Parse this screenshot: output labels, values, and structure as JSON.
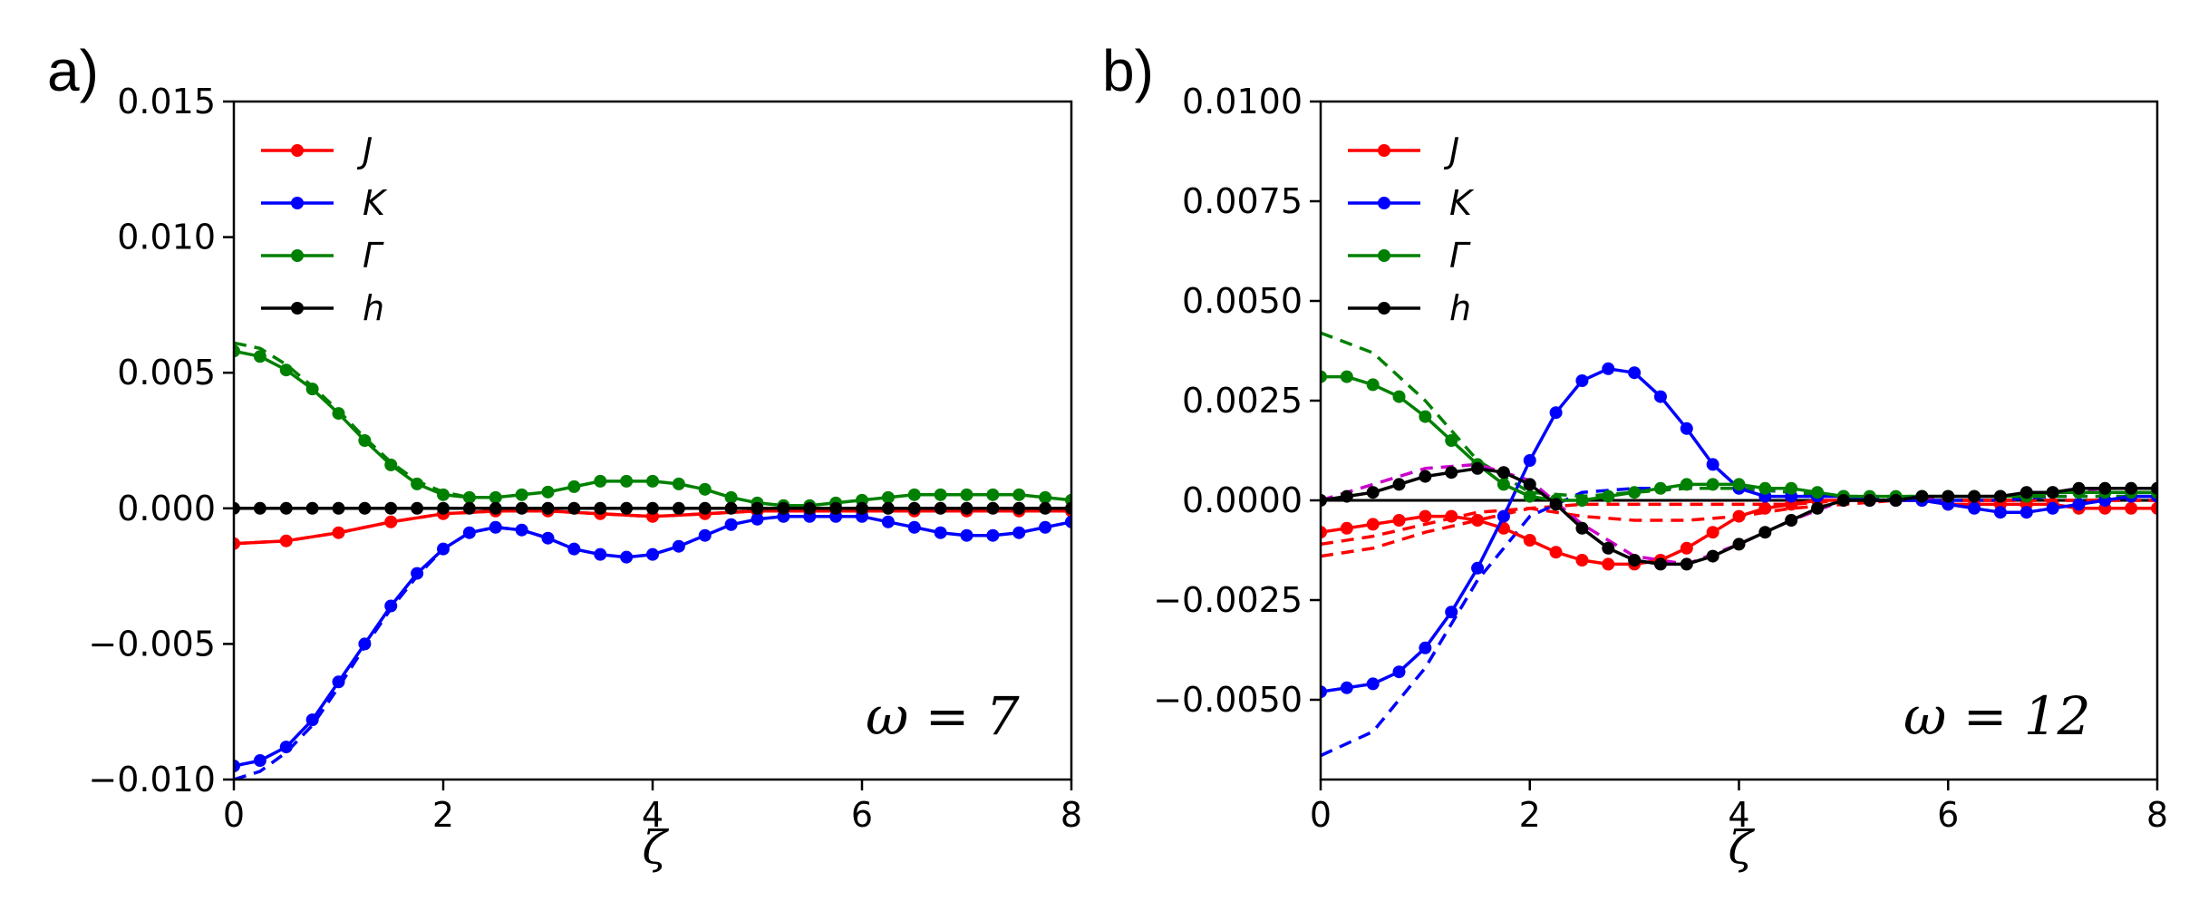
{
  "chart_data": [
    {
      "type": "line",
      "panel_label": "a)",
      "xlabel": "ζ",
      "ylabel": "",
      "xlim": [
        0,
        8
      ],
      "ylim": [
        -0.01,
        0.015
      ],
      "xticks": [
        0,
        2,
        4,
        6,
        8
      ],
      "xtick_labels": [
        "0",
        "2",
        "4",
        "6",
        "8"
      ],
      "yticks": [
        -0.01,
        -0.005,
        0.0,
        0.005,
        0.01,
        0.015
      ],
      "ytick_labels": [
        "−0.010",
        "−0.005",
        "0.000",
        "0.005",
        "0.010",
        "0.015"
      ],
      "annotation": "ω = 7",
      "legend_position": "upper-left",
      "legend": [
        "J",
        "K",
        "Γ",
        "h"
      ],
      "colors": {
        "J": "#ff0000",
        "K": "#0000ff",
        "Γ": "#008000",
        "h": "#000000"
      },
      "series": [
        {
          "name": "J",
          "color": "#ff0000",
          "style": "solid-dots",
          "x": [
            0,
            0.5,
            1,
            1.5,
            2,
            2.5,
            3,
            3.5,
            4,
            4.5,
            5,
            5.5,
            6,
            6.5,
            7,
            7.5,
            8
          ],
          "y": [
            -0.0013,
            -0.0012,
            -0.0009,
            -0.0005,
            -0.0002,
            -0.0001,
            -0.0001,
            -0.0002,
            -0.0003,
            -0.0002,
            -0.0001,
            -0.0001,
            -0.0001,
            -0.0001,
            -0.0001,
            -0.0001,
            -0.0001
          ]
        },
        {
          "name": "J dashed",
          "color": "#ff0000",
          "style": "dashed",
          "x": [
            0,
            0.5,
            1,
            1.5,
            2,
            2.5,
            3,
            3.5,
            4,
            4.5,
            5,
            5.5,
            6,
            6.5,
            7,
            7.5,
            8
          ],
          "y": [
            -0.0013,
            -0.0012,
            -0.0009,
            -0.0005,
            -0.0002,
            -0.0001,
            -0.0001,
            -0.0002,
            -0.0003,
            -0.0002,
            -0.0001,
            -0.0001,
            -0.0001,
            -0.0001,
            -0.0001,
            -0.0001,
            -0.0001
          ]
        },
        {
          "name": "K",
          "color": "#0000ff",
          "style": "solid-dots",
          "x": [
            0,
            0.25,
            0.5,
            0.75,
            1,
            1.25,
            1.5,
            1.75,
            2,
            2.25,
            2.5,
            2.75,
            3,
            3.25,
            3.5,
            3.75,
            4,
            4.25,
            4.5,
            4.75,
            5,
            5.25,
            5.5,
            5.75,
            6,
            6.25,
            6.5,
            6.75,
            7,
            7.25,
            7.5,
            7.75,
            8
          ],
          "y": [
            -0.0095,
            -0.0093,
            -0.0088,
            -0.0078,
            -0.0064,
            -0.005,
            -0.0036,
            -0.0024,
            -0.0015,
            -0.0009,
            -0.0007,
            -0.0008,
            -0.0011,
            -0.0015,
            -0.0017,
            -0.0018,
            -0.0017,
            -0.0014,
            -0.001,
            -0.0006,
            -0.0004,
            -0.0003,
            -0.0003,
            -0.0003,
            -0.0003,
            -0.0005,
            -0.0007,
            -0.0009,
            -0.001,
            -0.001,
            -0.0009,
            -0.0007,
            -0.0005
          ]
        },
        {
          "name": "K dashed",
          "color": "#0000ff",
          "style": "dashed",
          "x": [
            0,
            0.25,
            0.5,
            0.75,
            1,
            1.25,
            1.5,
            1.75,
            2,
            2.25,
            2.5,
            2.75,
            3
          ],
          "y": [
            -0.01,
            -0.0097,
            -0.009,
            -0.008,
            -0.0066,
            -0.0051,
            -0.0037,
            -0.0025,
            -0.0015,
            -0.0009,
            -0.0007,
            -0.0008,
            -0.0011
          ]
        },
        {
          "name": "Γ",
          "color": "#008000",
          "style": "solid-dots",
          "x": [
            0,
            0.25,
            0.5,
            0.75,
            1,
            1.25,
            1.5,
            1.75,
            2,
            2.25,
            2.5,
            2.75,
            3,
            3.25,
            3.5,
            3.75,
            4,
            4.25,
            4.5,
            4.75,
            5,
            5.25,
            5.5,
            5.75,
            6,
            6.25,
            6.5,
            6.75,
            7,
            7.25,
            7.5,
            7.75,
            8
          ],
          "y": [
            0.0058,
            0.0056,
            0.0051,
            0.0044,
            0.0035,
            0.0025,
            0.0016,
            0.0009,
            0.0005,
            0.0004,
            0.0004,
            0.0005,
            0.0006,
            0.0008,
            0.001,
            0.001,
            0.001,
            0.0009,
            0.0007,
            0.0004,
            0.0002,
            0.0001,
            0.0001,
            0.0002,
            0.0003,
            0.0004,
            0.0005,
            0.0005,
            0.0005,
            0.0005,
            0.0005,
            0.0004,
            0.0003
          ]
        },
        {
          "name": "Γ dashed",
          "color": "#008000",
          "style": "dashed",
          "x": [
            0,
            0.25,
            0.5,
            0.75,
            1,
            1.25,
            1.5,
            1.75,
            2,
            2.25,
            2.5
          ],
          "y": [
            0.0061,
            0.0059,
            0.0053,
            0.0045,
            0.0036,
            0.0026,
            0.0017,
            0.001,
            0.0006,
            0.0004,
            0.0004
          ]
        },
        {
          "name": "h",
          "color": "#000000",
          "style": "solid-dots",
          "x": [
            0,
            0.25,
            0.5,
            0.75,
            1,
            1.25,
            1.5,
            1.75,
            2,
            2.25,
            2.5,
            2.75,
            3,
            3.25,
            3.5,
            3.75,
            4,
            4.25,
            4.5,
            4.75,
            5,
            5.25,
            5.5,
            5.75,
            6,
            6.25,
            6.5,
            6.75,
            7,
            7.25,
            7.5,
            7.75,
            8
          ],
          "y": [
            0.0,
            0.0,
            0.0,
            0.0,
            0.0,
            0.0,
            0.0,
            0.0,
            0.0,
            0.0,
            0.0,
            0.0,
            0.0,
            0.0,
            0.0,
            0.0,
            0.0,
            0.0,
            0.0,
            0.0,
            0.0,
            0.0,
            0.0,
            0.0,
            0.0,
            0.0,
            0.0,
            0.0,
            0.0,
            0.0,
            0.0,
            0.0,
            0.0
          ]
        }
      ]
    },
    {
      "type": "line",
      "panel_label": "b)",
      "xlabel": "ζ",
      "ylabel": "",
      "xlim": [
        0,
        8
      ],
      "ylim": [
        -0.007,
        0.01
      ],
      "xticks": [
        0,
        2,
        4,
        6,
        8
      ],
      "xtick_labels": [
        "0",
        "2",
        "4",
        "6",
        "8"
      ],
      "yticks": [
        -0.005,
        -0.0025,
        0.0,
        0.0025,
        0.005,
        0.0075,
        0.01
      ],
      "ytick_labels": [
        "−0.0050",
        "−0.0025",
        "0.0000",
        "0.0025",
        "0.0050",
        "0.0075",
        "0.0100"
      ],
      "annotation": "ω = 12",
      "legend_position": "upper-left",
      "legend": [
        "J",
        "K",
        "Γ",
        "h"
      ],
      "colors": {
        "J": "#ff0000",
        "K": "#0000ff",
        "Γ": "#008000",
        "h": "#000000",
        "extra": "#cc00cc"
      },
      "series": [
        {
          "name": "J",
          "color": "#ff0000",
          "style": "solid-dots",
          "x": [
            0,
            0.25,
            0.5,
            0.75,
            1,
            1.25,
            1.5,
            1.75,
            2,
            2.25,
            2.5,
            2.75,
            3,
            3.25,
            3.5,
            3.75,
            4,
            4.25,
            4.5,
            4.75,
            5,
            5.25,
            5.5,
            5.75,
            6,
            6.25,
            6.5,
            6.75,
            7,
            7.25,
            7.5,
            7.75,
            8
          ],
          "y": [
            -0.0008,
            -0.0007,
            -0.0006,
            -0.0005,
            -0.0004,
            -0.0004,
            -0.0005,
            -0.0007,
            -0.001,
            -0.0013,
            -0.0015,
            -0.0016,
            -0.0016,
            -0.0015,
            -0.0012,
            -0.0008,
            -0.0004,
            -0.0002,
            -0.0001,
            0.0,
            0.0,
            0.0,
            0.0,
            0.0,
            -0.0001,
            -0.0001,
            -0.0001,
            -0.0001,
            -0.0001,
            -0.0002,
            -0.0002,
            -0.0002,
            -0.0002
          ]
        },
        {
          "name": "J dashed 1",
          "color": "#ff0000",
          "style": "dashed",
          "x": [
            0,
            0.5,
            1,
            1.5,
            2,
            2.5,
            3,
            3.5,
            4,
            4.5,
            5,
            5.5,
            6,
            6.5,
            7,
            7.5,
            8
          ],
          "y": [
            -0.0014,
            -0.0012,
            -0.0008,
            -0.0005,
            -0.0002,
            -0.0001,
            -0.0001,
            -0.0001,
            -0.0001,
            -0.0001,
            0.0,
            0.0,
            0.0,
            0.0,
            0.0,
            0.0,
            0.0
          ]
        },
        {
          "name": "J dashed 2",
          "color": "#ff0000",
          "style": "dashed",
          "x": [
            0,
            0.5,
            1,
            1.5,
            2,
            2.5,
            3,
            3.5,
            4,
            4.5,
            5,
            5.5,
            6,
            6.5,
            7,
            7.5,
            8
          ],
          "y": [
            -0.0011,
            -0.0009,
            -0.0006,
            -0.0003,
            -0.0002,
            -0.0004,
            -0.0005,
            -0.0005,
            -0.0004,
            -0.0002,
            -0.0001,
            0.0,
            0.0,
            0.0,
            0.0,
            0.0,
            0.0
          ]
        },
        {
          "name": "K",
          "color": "#0000ff",
          "style": "solid-dots",
          "x": [
            0,
            0.25,
            0.5,
            0.75,
            1,
            1.25,
            1.5,
            1.75,
            2,
            2.25,
            2.5,
            2.75,
            3,
            3.25,
            3.5,
            3.75,
            4,
            4.25,
            4.5,
            4.75,
            5,
            5.25,
            5.5,
            5.75,
            6,
            6.25,
            6.5,
            6.75,
            7,
            7.25,
            7.5,
            7.75,
            8
          ],
          "y": [
            -0.0048,
            -0.0047,
            -0.0046,
            -0.0043,
            -0.0037,
            -0.0028,
            -0.0017,
            -0.0004,
            0.001,
            0.0022,
            0.003,
            0.0033,
            0.0032,
            0.0026,
            0.0018,
            0.0009,
            0.0003,
            0.0001,
            0.0001,
            0.0001,
            0.0001,
            0.0,
            0.0,
            0.0,
            -0.0001,
            -0.0002,
            -0.0003,
            -0.0003,
            -0.0002,
            -0.0001,
            0.0,
            0.0001,
            0.0001
          ]
        },
        {
          "name": "K dashed",
          "color": "#0000ff",
          "style": "dashed",
          "x": [
            0,
            0.5,
            1,
            1.5,
            2,
            2.5,
            3,
            3.5,
            4,
            4.5,
            5,
            5.5,
            6,
            6.5,
            7,
            7.5,
            8
          ],
          "y": [
            -0.0064,
            -0.0058,
            -0.0042,
            -0.002,
            -0.0004,
            0.0002,
            0.0003,
            0.0003,
            0.0003,
            0.0002,
            0.0001,
            0.0,
            0.0,
            0.0,
            0.0001,
            0.0001,
            0.0001
          ]
        },
        {
          "name": "Γ",
          "color": "#008000",
          "style": "solid-dots",
          "x": [
            0,
            0.25,
            0.5,
            0.75,
            1,
            1.25,
            1.5,
            1.75,
            2,
            2.25,
            2.5,
            2.75,
            3,
            3.25,
            3.5,
            3.75,
            4,
            4.25,
            4.5,
            4.75,
            5,
            5.25,
            5.5,
            5.75,
            6,
            6.25,
            6.5,
            6.75,
            7,
            7.25,
            7.5,
            7.75,
            8
          ],
          "y": [
            0.0031,
            0.0031,
            0.0029,
            0.0026,
            0.0021,
            0.0015,
            0.0009,
            0.0004,
            0.0001,
            0.0,
            0.0,
            0.0001,
            0.0002,
            0.0003,
            0.0004,
            0.0004,
            0.0004,
            0.0003,
            0.0003,
            0.0002,
            0.0001,
            0.0001,
            0.0001,
            0.0001,
            0.0001,
            0.0001,
            0.0001,
            0.0001,
            0.0002,
            0.0002,
            0.0002,
            0.0002,
            0.0002
          ]
        },
        {
          "name": "Γ dashed",
          "color": "#008000",
          "style": "dashed",
          "x": [
            0,
            0.5,
            1,
            1.5,
            2,
            2.5,
            3,
            3.5,
            4,
            4.5,
            5,
            5.5,
            6,
            6.5,
            7,
            7.5,
            8
          ],
          "y": [
            0.0042,
            0.0037,
            0.0025,
            0.001,
            0.0002,
            0.0001,
            0.0002,
            0.0003,
            0.0003,
            0.0002,
            0.0001,
            0.0001,
            0.0001,
            0.0001,
            0.0001,
            0.0001,
            0.0001
          ]
        },
        {
          "name": "h",
          "color": "#000000",
          "style": "solid-dots",
          "x": [
            0,
            0.25,
            0.5,
            0.75,
            1,
            1.25,
            1.5,
            1.75,
            2,
            2.25,
            2.5,
            2.75,
            3,
            3.25,
            3.5,
            3.75,
            4,
            4.25,
            4.5,
            4.75,
            5,
            5.25,
            5.5,
            5.75,
            6,
            6.25,
            6.5,
            6.75,
            7,
            7.25,
            7.5,
            7.75,
            8
          ],
          "y": [
            0.0,
            0.0001,
            0.0002,
            0.0004,
            0.0006,
            0.0007,
            0.0008,
            0.0007,
            0.0004,
            -0.0001,
            -0.0007,
            -0.0012,
            -0.0015,
            -0.0016,
            -0.0016,
            -0.0014,
            -0.0011,
            -0.0008,
            -0.0005,
            -0.0002,
            0.0,
            0.0,
            0.0,
            0.0001,
            0.0001,
            0.0001,
            0.0001,
            0.0002,
            0.0002,
            0.0003,
            0.0003,
            0.0003,
            0.0003
          ]
        },
        {
          "name": "h dashed",
          "color": "#cc00cc",
          "style": "dashed",
          "x": [
            0,
            0.5,
            1,
            1.5,
            2,
            2.5,
            3,
            3.5,
            4,
            4.5,
            5,
            5.5,
            6,
            6.5,
            7,
            7.5,
            8
          ],
          "y": [
            0.0,
            0.0004,
            0.0008,
            0.0009,
            0.0005,
            -0.0006,
            -0.0014,
            -0.0016,
            -0.0011,
            -0.0005,
            0.0,
            0.0,
            0.0001,
            0.0001,
            0.0002,
            0.0003,
            0.0003
          ]
        }
      ]
    }
  ]
}
